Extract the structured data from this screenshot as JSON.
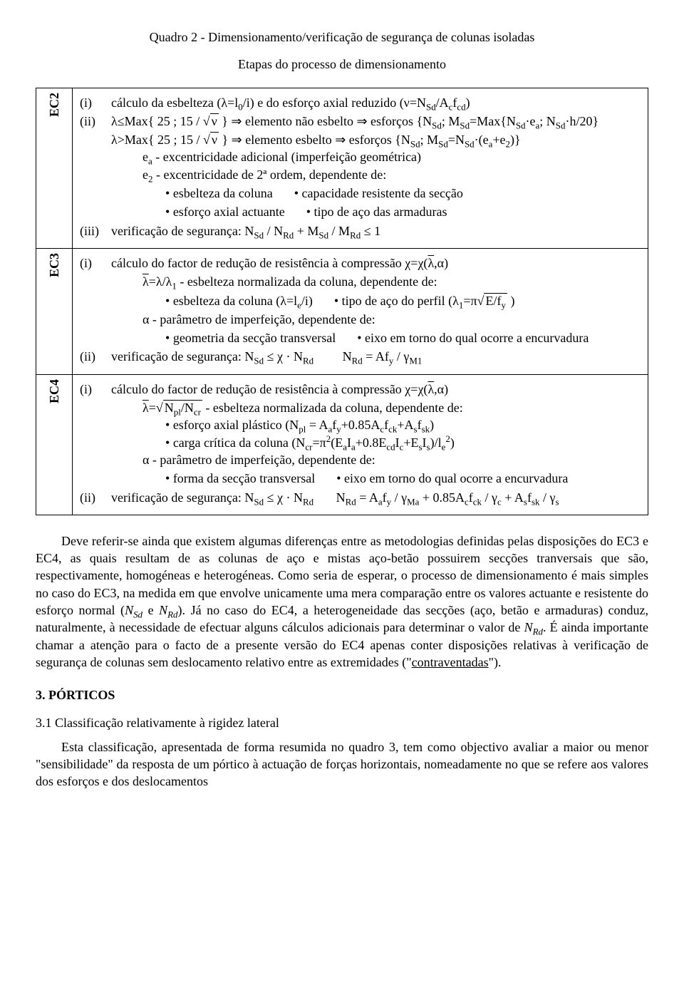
{
  "title": "Quadro 2 - Dimensionamento/verificação de segurança de colunas isoladas",
  "subtitle": "Etapas do processo de dimensionamento",
  "ec2": {
    "label": "EC2",
    "items": {
      "i_num": "(i)",
      "i_text": "cálculo da esbelteza (λ=l₀/i) e do esforço axial reduzido (ν=N_Sd/A_c f_cd)",
      "ii_num": "(ii)",
      "ii_line1a": "λ≤Max{ 25 ; 15 / ",
      "ii_line1b": " } ⇒ elemento não esbelto ⇒ esforços {N_Sd; M_Sd=Max{N_Sd·e_a; N_Sd·h/20}",
      "ii_line2a": "λ>Max{ 25 ; 15 / ",
      "ii_line2b": " } ⇒ elemento esbelto ⇒ esforços {N_Sd; M_Sd=N_Sd·(e_a+e₂)}",
      "ea_line": "e_a - excentricidade adicional (imperfeição geométrica)",
      "e2_line": "e₂ - excentricidade de 2ª ordem, dependente de:",
      "b1l": "esbelteza da coluna",
      "b1r": "capacidade resistente da secção",
      "b2l": "esforço axial actuante",
      "b2r": "tipo de aço das armaduras",
      "iii_num": "(iii)",
      "iii_text": "verificação de segurança: N_Sd / N_Rd + M_Sd / M_Rd ≤ 1"
    }
  },
  "ec3": {
    "label": "EC3",
    "items": {
      "i_num": "(i)",
      "i_text": "cálculo do factor de redução de resistência à compressão χ=χ(λ̄,α)",
      "lam_line": "λ̄=λ/λ₁ - esbelteza normalizada da coluna, dependente de:",
      "b1l": "esbelteza da coluna (λ=l_e/i)",
      "b1r": "tipo de aço do perfil (λ₁=π√(E/f_y) )",
      "alpha_line": "α - parâmetro de imperfeição, dependente de:",
      "b2l": "geometria da secção transversal",
      "b2r": "eixo em torno do qual ocorre a encurvadura",
      "ii_num": "(ii)",
      "ii_text": "verificação de segurança: N_Sd ≤ χ · N_Rd          N_Rd = A f_y / γ_M1"
    }
  },
  "ec4": {
    "label": "EC4",
    "items": {
      "i_num": "(i)",
      "i_text": "cálculo do factor de redução de resistência à compressão χ=χ(λ̄,α)",
      "lam_line": "λ̄=√(N_pl/N_cr) - esbelteza normalizada da coluna, dependente de:",
      "b1l": "esforço axial plástico (N_pl = A_a f_y+0.85A_c f_ck+A_s f_sk)",
      "b2l": "carga crítica da coluna (N_cr=π²(E_a I_a+0.8E_cd I_c+E_s I_s)/l_e²)",
      "alpha_line": "α - parâmetro de imperfeição, dependente de:",
      "b3l": "forma da secção transversal",
      "b3r": "eixo em torno do qual ocorre a encurvadura",
      "ii_num": "(ii)",
      "ii_text": "verificação de segurança: N_Sd ≤ χ · N_Rd        N_Rd = A_a f_y / γ_Ma + 0.85A_c f_ck / γ_c + A_s f_sk / γ_s"
    }
  },
  "body": {
    "p1a": "Deve referir-se ainda que existem algumas diferenças entre as metodologias definidas pelas disposições do EC3 e EC4, as quais resultam de as colunas de aço e mistas aço-betão possuirem secções tranversais que são, respectivamente, homogéneas e heterogéneas. Como seria de esperar, o processo de dimensionamento é mais simples no caso do EC3, na medida em que envolve unicamente uma mera comparação entre os valores actuante e resistente do esforço normal (",
    "p1i1": "N_Sd",
    "p1b": " e ",
    "p1i2": "N_Rd",
    "p1c": "). Já no caso do EC4, a heterogeneidade das secções (aço, betão e armaduras) conduz, naturalmente, à necessidade de efectuar alguns cálculos adicionais para determinar o valor de ",
    "p1i3": "N_Rd",
    "p1d": ". É ainda importante chamar a atenção para o facto de a presente versão do EC4 apenas conter disposições relativas à verificação de segurança de colunas sem deslocamento relativo entre as extremidades (\"",
    "p1u": "contraventadas",
    "p1e": "\").",
    "h3": "3. PÓRTICOS",
    "h31": "3.1 Classificação relativamente à rigidez lateral",
    "p2": "Esta classificação, apresentada de forma resumida no quadro 3, tem como objectivo avaliar a maior ou menor \"sensibilidade\" da resposta de um pórtico à actuação de forças horizontais, nomeadamente no que se refere aos valores dos esforços e dos deslocamentos"
  }
}
